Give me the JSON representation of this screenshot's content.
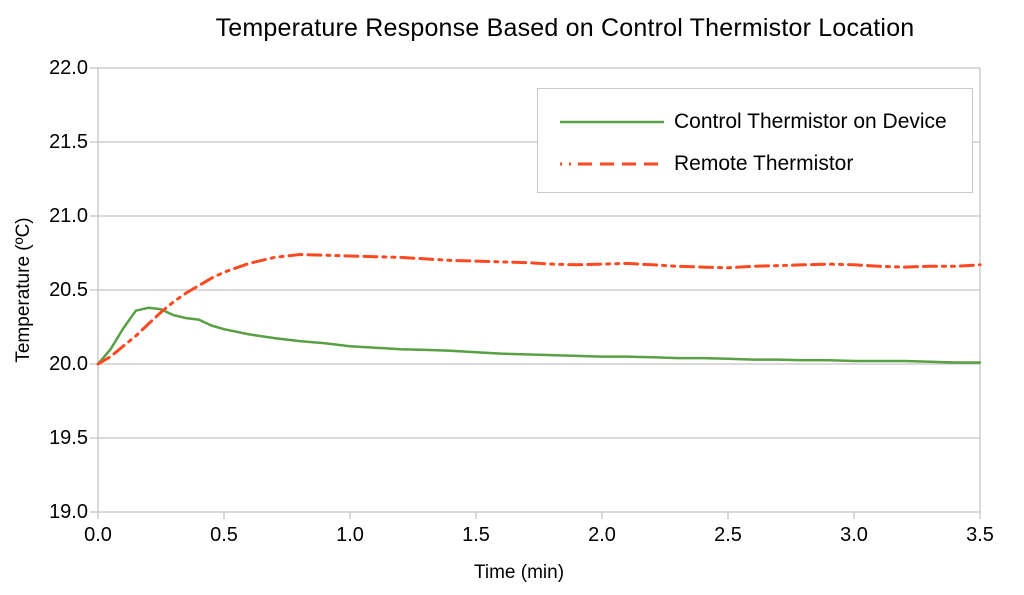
{
  "chart_data": {
    "type": "line",
    "title": "Temperature Response Based on Control Thermistor Location",
    "xlabel": "Time (min)",
    "ylabel": "Temperature (ºC)",
    "xlim": [
      0.0,
      3.5
    ],
    "ylim": [
      19.0,
      22.0
    ],
    "x_ticks": [
      "0.0",
      "0.5",
      "1.0",
      "1.5",
      "2.0",
      "2.5",
      "3.0",
      "3.5"
    ],
    "y_ticks": [
      "22.0",
      "21.5",
      "21.0",
      "20.5",
      "20.0",
      "19.5",
      "19.0"
    ],
    "grid": "horizontal",
    "grid_color": "#b5b5b5",
    "legend_position": "top-right",
    "series": [
      {
        "name": "Control Thermistor on Device",
        "color": "#58a043",
        "line_style": "solid",
        "line_width": 2.5,
        "x": [
          0.0,
          0.05,
          0.1,
          0.15,
          0.2,
          0.25,
          0.3,
          0.35,
          0.4,
          0.45,
          0.5,
          0.6,
          0.7,
          0.8,
          0.9,
          1.0,
          1.1,
          1.2,
          1.3,
          1.4,
          1.5,
          1.6,
          1.7,
          1.8,
          1.9,
          2.0,
          2.1,
          2.2,
          2.3,
          2.4,
          2.5,
          2.6,
          2.7,
          2.8,
          2.9,
          3.0,
          3.1,
          3.2,
          3.3,
          3.4,
          3.5
        ],
        "y": [
          20.0,
          20.1,
          20.24,
          20.36,
          20.38,
          20.37,
          20.33,
          20.31,
          20.3,
          20.26,
          20.235,
          20.2,
          20.175,
          20.155,
          20.14,
          20.12,
          20.11,
          20.1,
          20.095,
          20.09,
          20.08,
          20.07,
          20.065,
          20.06,
          20.055,
          20.05,
          20.05,
          20.045,
          20.04,
          20.04,
          20.035,
          20.03,
          20.03,
          20.025,
          20.025,
          20.02,
          20.02,
          20.02,
          20.015,
          20.01,
          20.01
        ]
      },
      {
        "name": "Remote Thermistor",
        "color": "#fb4a22",
        "line_style": "dash-dash-dot-dot",
        "line_width": 3,
        "x": [
          0.0,
          0.05,
          0.1,
          0.15,
          0.2,
          0.25,
          0.3,
          0.35,
          0.4,
          0.45,
          0.5,
          0.6,
          0.7,
          0.8,
          0.9,
          1.0,
          1.1,
          1.2,
          1.3,
          1.4,
          1.5,
          1.6,
          1.7,
          1.8,
          1.9,
          2.0,
          2.1,
          2.2,
          2.3,
          2.4,
          2.5,
          2.6,
          2.7,
          2.8,
          2.9,
          3.0,
          3.1,
          3.2,
          3.3,
          3.4,
          3.5
        ],
        "y": [
          20.0,
          20.05,
          20.12,
          20.19,
          20.27,
          20.35,
          20.42,
          20.48,
          20.53,
          20.58,
          20.62,
          20.68,
          20.72,
          20.74,
          20.735,
          20.73,
          20.725,
          20.72,
          20.71,
          20.7,
          20.695,
          20.69,
          20.685,
          20.675,
          20.67,
          20.675,
          20.68,
          20.67,
          20.66,
          20.655,
          20.65,
          20.66,
          20.665,
          20.67,
          20.675,
          20.67,
          20.66,
          20.655,
          20.66,
          20.66,
          20.67
        ]
      }
    ]
  }
}
